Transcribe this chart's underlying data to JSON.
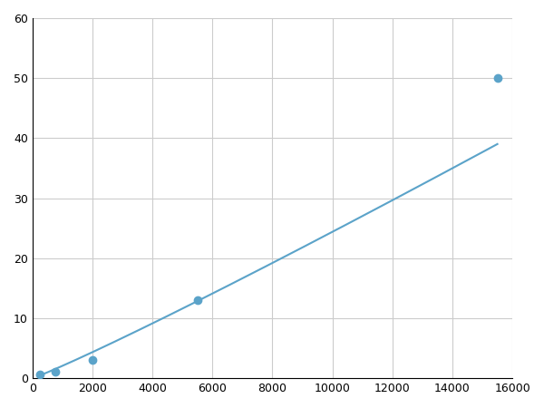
{
  "x_points": [
    250,
    750,
    2000,
    5500,
    15500
  ],
  "y_points": [
    0.7,
    1.1,
    3.1,
    13.0,
    50.0
  ],
  "line_color": "#5ba3c9",
  "marker_color": "#5ba3c9",
  "marker_size": 6,
  "line_width": 1.5,
  "xlim": [
    0,
    16000
  ],
  "ylim": [
    0,
    60
  ],
  "xticks": [
    0,
    2000,
    4000,
    6000,
    8000,
    10000,
    12000,
    14000,
    16000
  ],
  "yticks": [
    0,
    10,
    20,
    30,
    40,
    50,
    60
  ],
  "grid_color": "#cccccc",
  "bg_color": "#ffffff",
  "fig_width": 6.0,
  "fig_height": 4.5,
  "dpi": 100
}
